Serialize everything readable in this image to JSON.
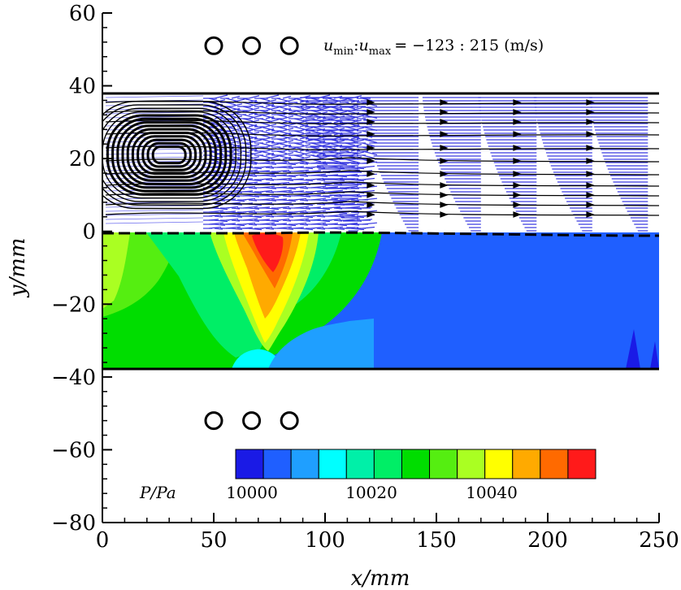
{
  "chart_data": {
    "type": "heatmap",
    "title": "",
    "xlabel": "x/mm",
    "ylabel": "y/mm",
    "xlim": [
      0,
      250
    ],
    "ylim": [
      -80,
      60
    ],
    "x_ticks": [
      0,
      50,
      100,
      150,
      200,
      250
    ],
    "y_ticks": [
      60,
      40,
      20,
      0,
      -20,
      -40,
      -60,
      -80
    ],
    "x_tick_labels": [
      "0",
      "50",
      "100",
      "150",
      "200",
      "250"
    ],
    "y_tick_labels": [
      "60",
      "40",
      "20",
      "0",
      "−20",
      "−40",
      "−60",
      "−80"
    ],
    "annotation": "u_min : u_max = −123 : 215 (m/s)",
    "annotation_parts": {
      "u": "u",
      "min": "min",
      "colon": ":",
      "max": "max",
      "rest": "= −123 : 215 (m/s)"
    },
    "colorbar": {
      "label": "P/Pa",
      "tick_labels": [
        "10000",
        "10020",
        "10040"
      ],
      "tick_values": [
        10000,
        10020,
        10040
      ],
      "colors": [
        "#1a1ae6",
        "#1f5fff",
        "#1f9fff",
        "#00ffff",
        "#00f0a8",
        "#00ee66",
        "#00dd00",
        "#55ee11",
        "#aaff22",
        "#ffff00",
        "#ffaa00",
        "#ff6a00",
        "#ff1a1a"
      ]
    },
    "channel_walls_y": [
      38,
      -38
    ],
    "circles_top": [
      {
        "x": 50,
        "y": 51
      },
      {
        "x": 67,
        "y": 51
      },
      {
        "x": 84,
        "y": 51
      }
    ],
    "circles_bottom": [
      {
        "x": 50,
        "y": -52
      },
      {
        "x": 67,
        "y": -52
      },
      {
        "x": 84,
        "y": -52
      }
    ],
    "pressure_field_regions": [
      {
        "name": "background",
        "level": 10000
      },
      {
        "name": "left-plume",
        "level": 10030
      },
      {
        "name": "hot-core",
        "level": 10050
      },
      {
        "name": "upstream",
        "level": 10038
      }
    ],
    "vortex_center": {
      "x": 30,
      "y": 21
    },
    "velocity_profile_x": [
      115,
      142,
      170,
      195,
      220,
      245
    ]
  }
}
